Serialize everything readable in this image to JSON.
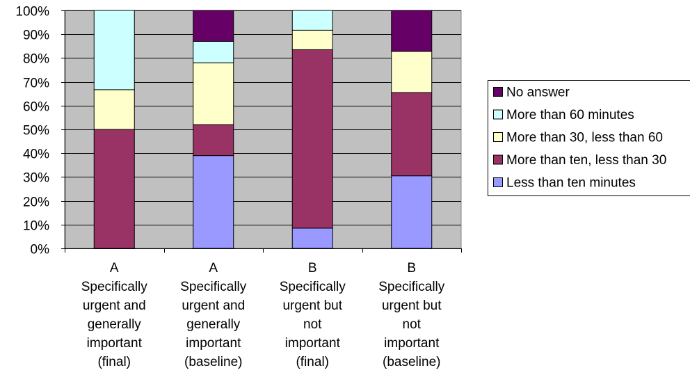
{
  "chart_data": {
    "type": "bar",
    "stacked": true,
    "percent": true,
    "categories": [
      [
        "A",
        "Specifically",
        "urgent and",
        "generally",
        "important",
        "(final)"
      ],
      [
        "A",
        "Specifically",
        "urgent and",
        "generally",
        "important",
        "(baseline)"
      ],
      [
        "B",
        "Specifically",
        "urgent but",
        "not",
        "important",
        "(final)"
      ],
      [
        "B",
        "Specifically",
        "urgent but",
        "not",
        "important",
        "(baseline)"
      ]
    ],
    "series": [
      {
        "name": "Less than ten minutes",
        "color": "#9999ff",
        "values": [
          0,
          39,
          8.5,
          30.5
        ]
      },
      {
        "name": "More than ten, less than 30",
        "color": "#993366",
        "values": [
          50,
          13,
          75,
          35
        ]
      },
      {
        "name": "More than 30, less than 60",
        "color": "#ffffcc",
        "values": [
          16.7,
          26,
          8.2,
          17.3
        ]
      },
      {
        "name": "More than 60 minutes",
        "color": "#ccffff",
        "values": [
          33.3,
          9,
          8.3,
          0
        ]
      },
      {
        "name": "No answer",
        "color": "#660066",
        "values": [
          0,
          13,
          0,
          17.2
        ]
      }
    ],
    "legend_order": [
      "No answer",
      "More than 60 minutes",
      "More than 30, less than 60",
      "More than ten, less than 30",
      "Less than ten minutes"
    ],
    "yticks": [
      "0%",
      "10%",
      "20%",
      "30%",
      "40%",
      "50%",
      "60%",
      "70%",
      "80%",
      "90%",
      "100%"
    ],
    "ylim": [
      0,
      100
    ],
    "plot_background": "#c0c0c0",
    "grid": true,
    "legend_position": "right"
  }
}
